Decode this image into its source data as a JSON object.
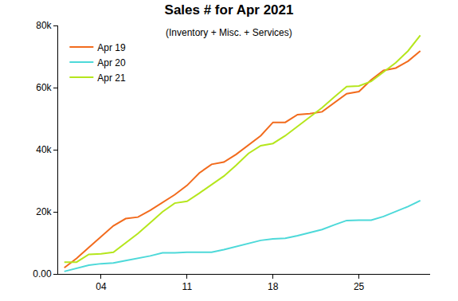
{
  "chart_data": {
    "type": "line",
    "title": "Sales # for Apr 2021",
    "subtitle": "(Inventory + Misc. + Services)",
    "x": [
      1,
      2,
      3,
      4,
      5,
      6,
      7,
      8,
      9,
      10,
      11,
      12,
      13,
      14,
      15,
      16,
      17,
      18,
      19,
      20,
      21,
      22,
      23,
      24,
      25,
      26,
      27,
      28,
      29,
      30
    ],
    "xlim": [
      0.5,
      30.8
    ],
    "xticks": [
      {
        "value": 4,
        "label": "04"
      },
      11,
      18,
      25
    ],
    "ylim": [
      0,
      80000
    ],
    "yticks": [
      {
        "value": 0,
        "label": "0.00"
      },
      {
        "value": 20000,
        "label": "20k"
      },
      {
        "value": 40000,
        "label": "40k"
      },
      {
        "value": 60000,
        "label": "60k"
      },
      {
        "value": 80000,
        "label": "80k"
      }
    ],
    "grid": false,
    "legend": "upper left",
    "series": [
      {
        "name": "Apr 19",
        "color": "#f26b1d",
        "values": [
          2000,
          5000,
          8500,
          12000,
          15500,
          17800,
          18300,
          20500,
          23000,
          25500,
          28500,
          32500,
          35300,
          36000,
          38500,
          41500,
          44500,
          48800,
          48800,
          51300,
          51600,
          52200,
          55000,
          58000,
          58700,
          62500,
          65500,
          66300,
          68500,
          71800
        ]
      },
      {
        "name": "Apr 20",
        "color": "#4dd9d9",
        "values": [
          800,
          1800,
          2800,
          3300,
          3500,
          4300,
          5000,
          5800,
          6800,
          6800,
          7000,
          7000,
          7000,
          7800,
          8800,
          9700,
          10800,
          11300,
          11500,
          12300,
          13300,
          14300,
          15800,
          17200,
          17300,
          17300,
          18500,
          20000,
          21700,
          23600
        ]
      },
      {
        "name": "Apr 21",
        "color": "#b5e61d",
        "values": [
          3800,
          3800,
          6300,
          6500,
          7000,
          10000,
          13000,
          16500,
          20000,
          22800,
          23400,
          26000,
          28800,
          31500,
          35000,
          38800,
          41300,
          42000,
          44500,
          47500,
          50500,
          53500,
          57000,
          60300,
          60500,
          62000,
          65000,
          68000,
          71800,
          76800
        ]
      }
    ]
  }
}
